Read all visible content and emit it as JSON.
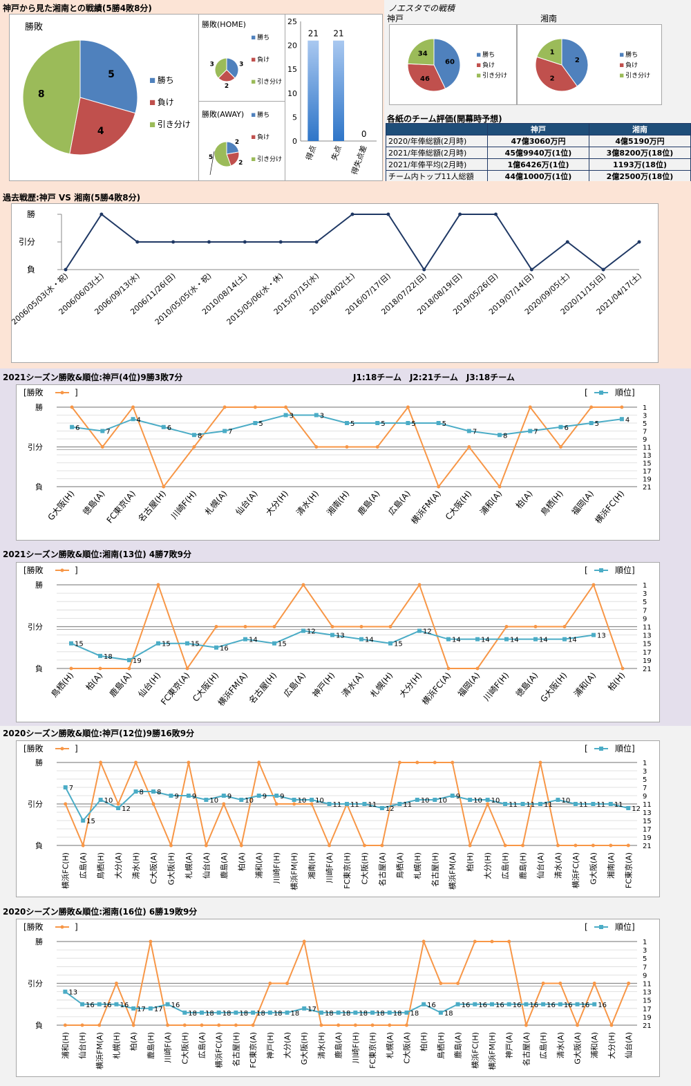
{
  "section1": {
    "title": "神戸から見た湘南との戦績(5勝4敗8分)",
    "main_pie_title": "勝敗",
    "home_title": "勝敗(HOME)",
    "away_title": "勝敗(AWAY)",
    "legend": [
      "勝ち",
      "負け",
      "引き分け"
    ],
    "legend_away": [
      "勝ち",
      "負け",
      "引き分け"
    ],
    "noesta_title": "ノエスタでの戦積",
    "noesta_kobe_label": "神戸",
    "noesta_shonan_label": "湘南",
    "colors": {
      "win": "#4f81bd",
      "lose": "#c0504d",
      "draw": "#9bbb59",
      "bar": "#4a8fd8",
      "line_dark": "#1f3864",
      "rank": "#4bacc6",
      "result_orange": "#f79646"
    }
  },
  "evaluation": {
    "title": "各紙のチーム評価(開幕時予想)",
    "header": [
      "",
      "神戸",
      "湘南"
    ],
    "rows": [
      [
        "2020/年俸総額(2月時)",
        "47億3060万円",
        "4億5190万円"
      ],
      [
        "2021/年俸総額(2月時)",
        "45億9940万(1位)",
        "3億8200万(18位)"
      ],
      [
        "2021/年俸平均(2月時)",
        "1億6426万(1位)",
        "1193万(18位)"
      ],
      [
        "チーム内トップ11人総額",
        "44億1000万(1位)",
        "2億2500万(18位)"
      ]
    ]
  },
  "history_title": "過去戦歴:神戸 VS 湘南(5勝4敗8分)",
  "s2021_kobe_title": "2021シーズン勝敗&順位:神戸(4位)9勝3敗7分",
  "league_info": "J1:18チーム　J2:21チーム　J3:18チーム",
  "s2021_shonan_title": "2021シーズン勝敗&順位:湘南(13位) 4勝7敗9分",
  "s2020_kobe_title": "2020シーズン勝敗&順位:神戸(12位)9勝16敗9分",
  "s2020_shonan_title": "2020シーズン勝敗&順位:湘南(16位) 6勝19敗9分",
  "legend_labels": {
    "result": "勝敗",
    "rank": "順位"
  },
  "chart_data": [
    {
      "type": "pie",
      "title": "勝敗",
      "labels": [
        "勝ち",
        "負け",
        "引き分け"
      ],
      "values": [
        5,
        4,
        8
      ]
    },
    {
      "type": "pie",
      "title": "勝敗(HOME)",
      "labels": [
        "勝ち",
        "負け",
        "引き分け"
      ],
      "values": [
        3,
        2,
        3
      ]
    },
    {
      "type": "pie",
      "title": "勝敗(AWAY)",
      "labels": [
        "勝ち",
        "負け",
        "引き分け"
      ],
      "values": [
        2,
        2,
        5
      ]
    },
    {
      "type": "bar",
      "categories": [
        "得点",
        "失点",
        "得失点差"
      ],
      "values": [
        21,
        21,
        0
      ],
      "ylim": [
        0,
        25
      ],
      "yticks": [
        0,
        5,
        10,
        15,
        20,
        25
      ]
    },
    {
      "type": "pie",
      "title": "神戸",
      "labels": [
        "勝ち",
        "負け",
        "引き分け"
      ],
      "values": [
        60,
        46,
        34
      ]
    },
    {
      "type": "pie",
      "title": "湘南",
      "labels": [
        "勝ち",
        "負け",
        "引き分け"
      ],
      "values": [
        2,
        2,
        1
      ]
    },
    {
      "type": "line",
      "title": "過去戦歴:神戸 VS 湘南(5勝4敗8分)",
      "y_categories": [
        "負",
        "引分",
        "勝"
      ],
      "x": [
        "2006/05/03(水・祝)",
        "2006/06/03(土)",
        "2006/09/13(水)",
        "2006/11/26(日)",
        "2010/05/05(水・祝)",
        "2010/08/14(土)",
        "2015/05/06(水・休)",
        "2015/07/15(水)",
        "2016/04/02(土)",
        "2016/07/17(日)",
        "2018/07/22(日)",
        "2018/08/19(日)",
        "2019/05/26(日)",
        "2019/07/14(日)",
        "2020/09/05(土)",
        "2020/11/15(日)",
        "2021/04/17(土)"
      ],
      "values": [
        0,
        2,
        1,
        1,
        1,
        1,
        1,
        1,
        2,
        2,
        0,
        2,
        2,
        0,
        1,
        0,
        1
      ]
    },
    {
      "type": "line",
      "title": "2021シーズン勝敗&順位:神戸(4位)9勝3敗7分",
      "x": [
        "G大阪(H)",
        "徳島(A)",
        "FC東京(A)",
        "名古屋(H)",
        "川崎F(H)",
        "札幌(A)",
        "仙台(A)",
        "大分(H)",
        "清水(H)",
        "湘南(H)",
        "鹿島(A)",
        "広島(A)",
        "横浜FM(A)",
        "C大阪(H)",
        "浦和(A)",
        "柏(A)",
        "鳥栖(H)",
        "福岡(A)",
        "横浜FC(H)"
      ],
      "series": [
        {
          "name": "勝敗",
          "values": [
            2,
            1,
            2,
            0,
            1,
            2,
            2,
            2,
            1,
            1,
            1,
            2,
            0,
            1,
            0,
            2,
            1,
            2,
            2
          ]
        },
        {
          "name": "順位",
          "values": [
            6,
            7,
            4,
            6,
            8,
            7,
            5,
            3,
            3,
            5,
            5,
            5,
            5,
            7,
            8,
            7,
            6,
            5,
            4
          ]
        }
      ]
    },
    {
      "type": "line",
      "title": "2021シーズン勝敗&順位:湘南(13位) 4勝7敗9分",
      "x": [
        "鳥栖(H)",
        "柏(A)",
        "鹿島(A)",
        "仙台(H)",
        "FC東京(A)",
        "C大阪(H)",
        "横浜FM(A)",
        "名古屋(H)",
        "広島(A)",
        "神戸(H)",
        "清水(A)",
        "札幌(H)",
        "大分(H)",
        "横浜FC(A)",
        "福岡(A)",
        "川崎F(H)",
        "徳島(A)",
        "G大阪(H)",
        "浦和(A)",
        "柏(H)"
      ],
      "series": [
        {
          "name": "勝敗",
          "values": [
            0,
            0,
            0,
            2,
            0,
            1,
            1,
            1,
            2,
            1,
            1,
            1,
            2,
            0,
            0,
            1,
            1,
            1,
            2,
            0
          ]
        },
        {
          "name": "順位",
          "values": [
            15,
            18,
            19,
            15,
            15,
            16,
            14,
            15,
            12,
            13,
            14,
            15,
            12,
            14,
            14,
            14,
            14,
            14,
            13,
            null
          ]
        }
      ]
    },
    {
      "type": "line",
      "title": "2020シーズン勝敗&順位:神戸(12位)9勝16敗9分",
      "x": [
        "横浜FC(H)",
        "広島(A)",
        "鳥栖(H)",
        "大分(A)",
        "清水(H)",
        "C大阪(A)",
        "G大阪(H)",
        "札幌(A)",
        "仙台(A)",
        "鹿島(A)",
        "柏(A)",
        "浦和(A)",
        "川崎F(H)",
        "横浜FM(H)",
        "湘南(H)",
        "川崎F(A)",
        "FC東京(H)",
        "C大阪(H)",
        "名古屋(A)",
        "鳥栖(A)",
        "札幌(H)",
        "名古屋(H)",
        "横浜FM(A)",
        "柏(H)",
        "大分(H)",
        "広島(H)",
        "鹿島(H)",
        "仙台(A)",
        "清水(A)",
        "横浜FC(A)",
        "G大阪(A)",
        "湘南(A)",
        "FC東京(A)"
      ],
      "series": [
        {
          "name": "勝敗",
          "values": [
            1,
            0,
            2,
            1,
            2,
            1,
            0,
            2,
            0,
            1,
            0,
            2,
            1,
            1,
            1,
            0,
            1,
            0,
            0,
            2,
            2,
            2,
            2,
            0,
            1,
            0,
            0,
            2,
            0,
            0,
            0,
            0,
            0
          ]
        },
        {
          "name": "順位",
          "values": [
            7,
            15,
            10,
            12,
            8,
            8,
            9,
            9,
            10,
            9,
            10,
            9,
            9,
            10,
            10,
            11,
            11,
            11,
            12,
            11,
            10,
            10,
            9,
            10,
            10,
            11,
            11,
            11,
            10,
            11,
            11,
            11,
            12
          ]
        }
      ]
    },
    {
      "type": "line",
      "title": "2020シーズン勝敗&順位:湘南(16位) 6勝19敗9分",
      "x": [
        "浦和(H)",
        "仙台(H)",
        "横浜FM(A)",
        "札幌(H)",
        "柏(A)",
        "鹿島(H)",
        "川崎F(A)",
        "C大阪(H)",
        "広島(A)",
        "横浜FC(A)",
        "名古屋(H)",
        "FC東京(A)",
        "神戸(H)",
        "大分(A)",
        "G大阪(H)",
        "清水(H)",
        "鹿島(A)",
        "川崎F(H)",
        "FC東京(H)",
        "札幌(A)",
        "C大阪(A)",
        "柏(H)",
        "鳥栖(H)",
        "鹿島(A)",
        "横浜FC(H)",
        "横浜FM(H)",
        "神戸(A)",
        "名古屋(A)",
        "広島(H)",
        "清水(A)",
        "G大阪(A)",
        "浦和(A)",
        "大分(H)",
        "仙台(A)"
      ],
      "series": [
        {
          "name": "勝敗",
          "values": [
            0,
            0,
            0,
            1,
            0,
            2,
            0,
            0,
            0,
            0,
            0,
            0,
            1,
            1,
            2,
            0,
            0,
            0,
            0,
            0,
            0,
            2,
            1,
            1,
            2,
            2,
            2,
            0,
            1,
            1,
            0,
            1,
            0,
            1
          ]
        },
        {
          "name": "順位",
          "values": [
            13,
            16,
            16,
            16,
            17,
            17,
            16,
            18,
            18,
            18,
            18,
            18,
            18,
            18,
            17,
            18,
            18,
            18,
            18,
            18,
            18,
            16,
            18,
            16,
            16,
            16,
            16,
            16,
            16,
            16,
            16,
            16,
            null,
            null
          ]
        }
      ]
    }
  ]
}
